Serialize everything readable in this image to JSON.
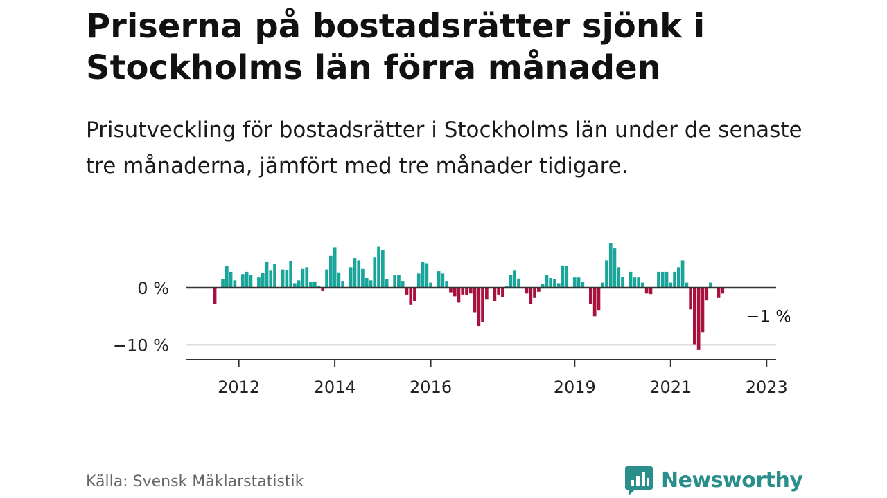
{
  "header": {
    "title": "Priserna på bostadsrätter sjönk i Stockholms län förra månaden",
    "subtitle": "Prisutveckling för bostadsrätter i Stockholms län under de senaste tre månaderna, jämfört med tre månader tidigare."
  },
  "footer": {
    "source": "Källa: Svensk Mäklarstatistik",
    "brand": "Newsworthy"
  },
  "colors": {
    "positive": "#1aa59b",
    "negative": "#a8103e",
    "baseline": "#333333",
    "grid": "#dddddd",
    "brand": "#2a8f8a"
  },
  "chart_data": {
    "type": "bar",
    "start": "2011-07",
    "frequency": "monthly",
    "x_ticks": [
      "2012",
      "2014",
      "2016",
      "2019",
      "2021",
      "2023"
    ],
    "y_ticks": [
      {
        "value": 0,
        "label": "0 %"
      },
      {
        "value": -10,
        "label": "−10 %"
      }
    ],
    "ylim": [
      -12.5,
      8
    ],
    "grid": true,
    "annotation": {
      "text": "−1 %",
      "value": -1,
      "period": "2023-01"
    },
    "values": [
      -2.8,
      0,
      1.5,
      3.8,
      2.8,
      1.3,
      0,
      2.4,
      2.8,
      2.3,
      0,
      1.8,
      2.6,
      4.5,
      3.0,
      4.2,
      0,
      3.2,
      3.1,
      4.7,
      0.8,
      1.3,
      3.3,
      3.6,
      1.0,
      1.1,
      0.3,
      -0.5,
      3.2,
      5.6,
      7.1,
      2.7,
      1.2,
      0,
      3.6,
      5.2,
      4.8,
      3.3,
      1.7,
      1.3,
      5.3,
      7.2,
      6.6,
      1.5,
      0,
      2.2,
      2.3,
      1.2,
      -1.2,
      -3.0,
      -2.3,
      2.5,
      4.5,
      4.3,
      0.9,
      0,
      2.9,
      2.5,
      1.2,
      -0.8,
      -1.5,
      -2.6,
      -1.2,
      -1.3,
      -1.0,
      -4.3,
      -6.8,
      -6.0,
      -2.1,
      0,
      -2.3,
      -1.2,
      -1.6,
      0.3,
      2.3,
      3.0,
      1.6,
      0,
      -1.0,
      -2.8,
      -1.8,
      -0.7,
      0.6,
      2.3,
      1.7,
      1.5,
      0.8,
      3.9,
      3.8,
      0,
      1.8,
      1.8,
      1.0,
      0,
      -2.8,
      -5.0,
      -3.9,
      0.9,
      4.8,
      7.8,
      6.9,
      3.6,
      1.9,
      0,
      2.8,
      1.8,
      1.8,
      0.9,
      -1.0,
      -1.1,
      0,
      2.8,
      2.8,
      2.8,
      0.9,
      2.8,
      3.6,
      4.8,
      0.9,
      -3.8,
      -10.0,
      -10.9,
      -7.8,
      -2.2,
      0.9,
      0,
      -1.8,
      -1.0
    ]
  }
}
